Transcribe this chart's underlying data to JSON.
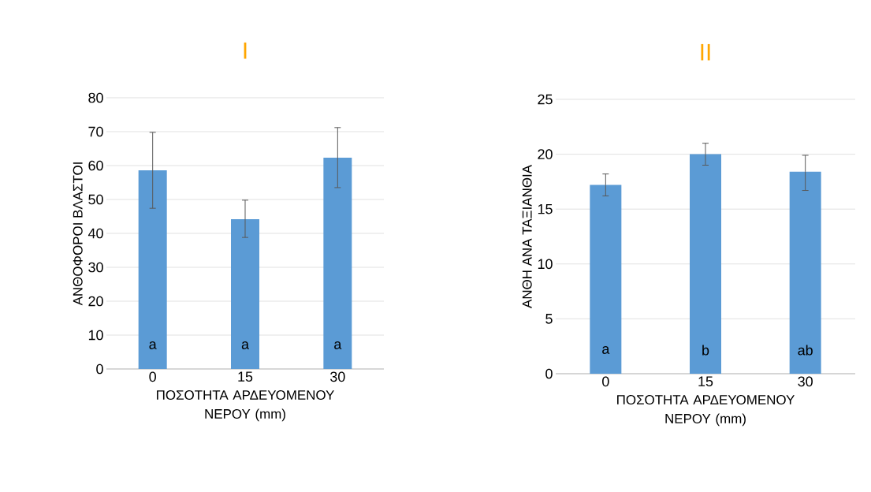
{
  "chart_data": [
    {
      "type": "bar",
      "title": "I",
      "xlabel": "ΠΟΣΟΤΗΤΑ ΑΡΔΕΥΟΜΕΝΟΥ ΝΕΡΟΥ (mm)",
      "ylabel": "ΑΝΘΟΦΟΡΟΙ ΒΛΑΣΤΟΙ",
      "categories": [
        "0",
        "15",
        "30"
      ],
      "values": [
        58.6,
        44.2,
        62.3
      ],
      "color": "#5b9bd5",
      "errors": [
        [
          47.4,
          69.8
        ],
        [
          38.8,
          49.8
        ],
        [
          53.5,
          71.2
        ]
      ],
      "ylim": [
        0,
        80
      ],
      "yticks": [
        0,
        10,
        20,
        30,
        40,
        50,
        60,
        70,
        80
      ],
      "grid": "y",
      "annotations": [
        "a",
        "a",
        "a"
      ]
    },
    {
      "type": "bar",
      "title": "II",
      "xlabel": "ΠΟΣΟΤΗΤΑ ΑΡΔΕΥΟΜΕΝΟΥ ΝΕΡΟΥ (mm)",
      "ylabel": "ΑΝΘΗ ΑΝΑ ΤΑΞΙΑΝΘΙΑ",
      "categories": [
        "0",
        "15",
        "30"
      ],
      "values": [
        17.2,
        20.0,
        18.4
      ],
      "color": "#5b9bd5",
      "errors": [
        [
          16.2,
          18.2
        ],
        [
          19.0,
          21.0
        ],
        [
          16.7,
          19.9
        ]
      ],
      "ylim": [
        0,
        25
      ],
      "yticks": [
        0,
        5,
        10,
        15,
        20,
        25
      ],
      "grid": "y",
      "annotations": [
        "a",
        "b",
        "ab"
      ]
    }
  ]
}
